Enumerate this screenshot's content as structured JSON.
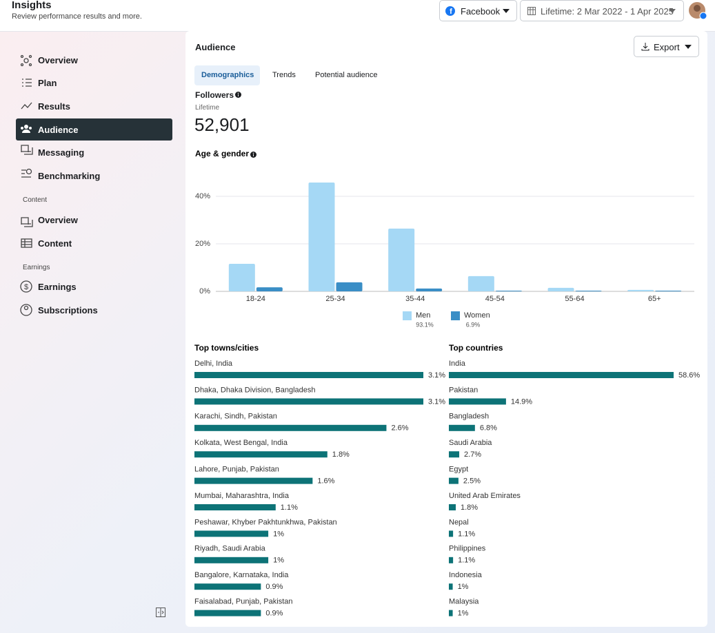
{
  "header": {
    "title": "Insights",
    "subtitle": "Review performance results and more.",
    "platform": "Facebook",
    "date_range": "Lifetime: 2 Mar 2022 - 1 Apr 2025"
  },
  "sidebar": {
    "items": [
      "Overview",
      "Plan",
      "Results",
      "Audience",
      "Messaging",
      "Benchmarking"
    ],
    "sections": [
      {
        "title": "Content",
        "items": [
          "Overview",
          "Content"
        ]
      },
      {
        "title": "Earnings",
        "items": [
          "Earnings",
          "Subscriptions"
        ]
      }
    ]
  },
  "panel": {
    "title": "Audience",
    "export": "Export",
    "tabs": [
      "Demographics",
      "Trends",
      "Potential audience"
    ],
    "followers_label": "Followers",
    "followers_period": "Lifetime",
    "followers_value": "52,901"
  },
  "chart_data": [
    {
      "type": "bar",
      "title": "Age & gender",
      "categories": [
        "18-24",
        "25-34",
        "35-44",
        "45-54",
        "55-64",
        "65+"
      ],
      "series": [
        {
          "name": "Men",
          "color": "#a5d8f5",
          "values": [
            11.6,
            45.8,
            26.4,
            6.4,
            1.5,
            0.6
          ],
          "share": {
            "value": 93.1,
            "label": "93.1%"
          }
        },
        {
          "name": "Women",
          "color": "#3a8ec6",
          "values": [
            1.7,
            3.8,
            1.2,
            0.3,
            0.3,
            0.3
          ],
          "share": {
            "value": 6.9,
            "label": "6.9%"
          }
        }
      ],
      "ylim": [
        0,
        50
      ],
      "yticks": [
        {
          "value": 0,
          "label": "0%"
        },
        {
          "value": 20,
          "label": "20%"
        },
        {
          "value": 40,
          "label": "40%"
        }
      ],
      "grid": true
    },
    {
      "type": "hbar",
      "title": "Top towns/cities",
      "color": "#0d7377",
      "categories": [
        "Delhi, India",
        "Dhaka, Dhaka Division, Bangladesh",
        "Karachi, Sindh, Pakistan",
        "Kolkata, West Bengal, India",
        "Lahore, Punjab, Pakistan",
        "Mumbai, Maharashtra, India",
        "Peshawar, Khyber Pakhtunkhwa, Pakistan",
        "Riyadh, Saudi Arabia",
        "Bangalore, Karnataka, India",
        "Faisalabad, Punjab, Pakistan"
      ],
      "values": [
        3.1,
        3.1,
        2.6,
        1.8,
        1.6,
        1.1,
        1,
        1,
        0.9,
        0.9
      ],
      "value_labels": [
        "3.1%",
        "3.1%",
        "2.6%",
        "1.8%",
        "1.6%",
        "1.1%",
        "1%",
        "1%",
        "0.9%",
        "0.9%"
      ]
    },
    {
      "type": "hbar",
      "title": "Top countries",
      "color": "#0d7377",
      "categories": [
        "India",
        "Pakistan",
        "Bangladesh",
        "Saudi Arabia",
        "Egypt",
        "United Arab Emirates",
        "Nepal",
        "Philippines",
        "Indonesia",
        "Malaysia"
      ],
      "values": [
        58.6,
        14.9,
        6.8,
        2.7,
        2.5,
        1.8,
        1.1,
        1.1,
        1,
        1
      ],
      "value_labels": [
        "58.6%",
        "14.9%",
        "6.8%",
        "2.7%",
        "2.5%",
        "1.8%",
        "1.1%",
        "1.1%",
        "1%",
        "1%"
      ]
    }
  ]
}
